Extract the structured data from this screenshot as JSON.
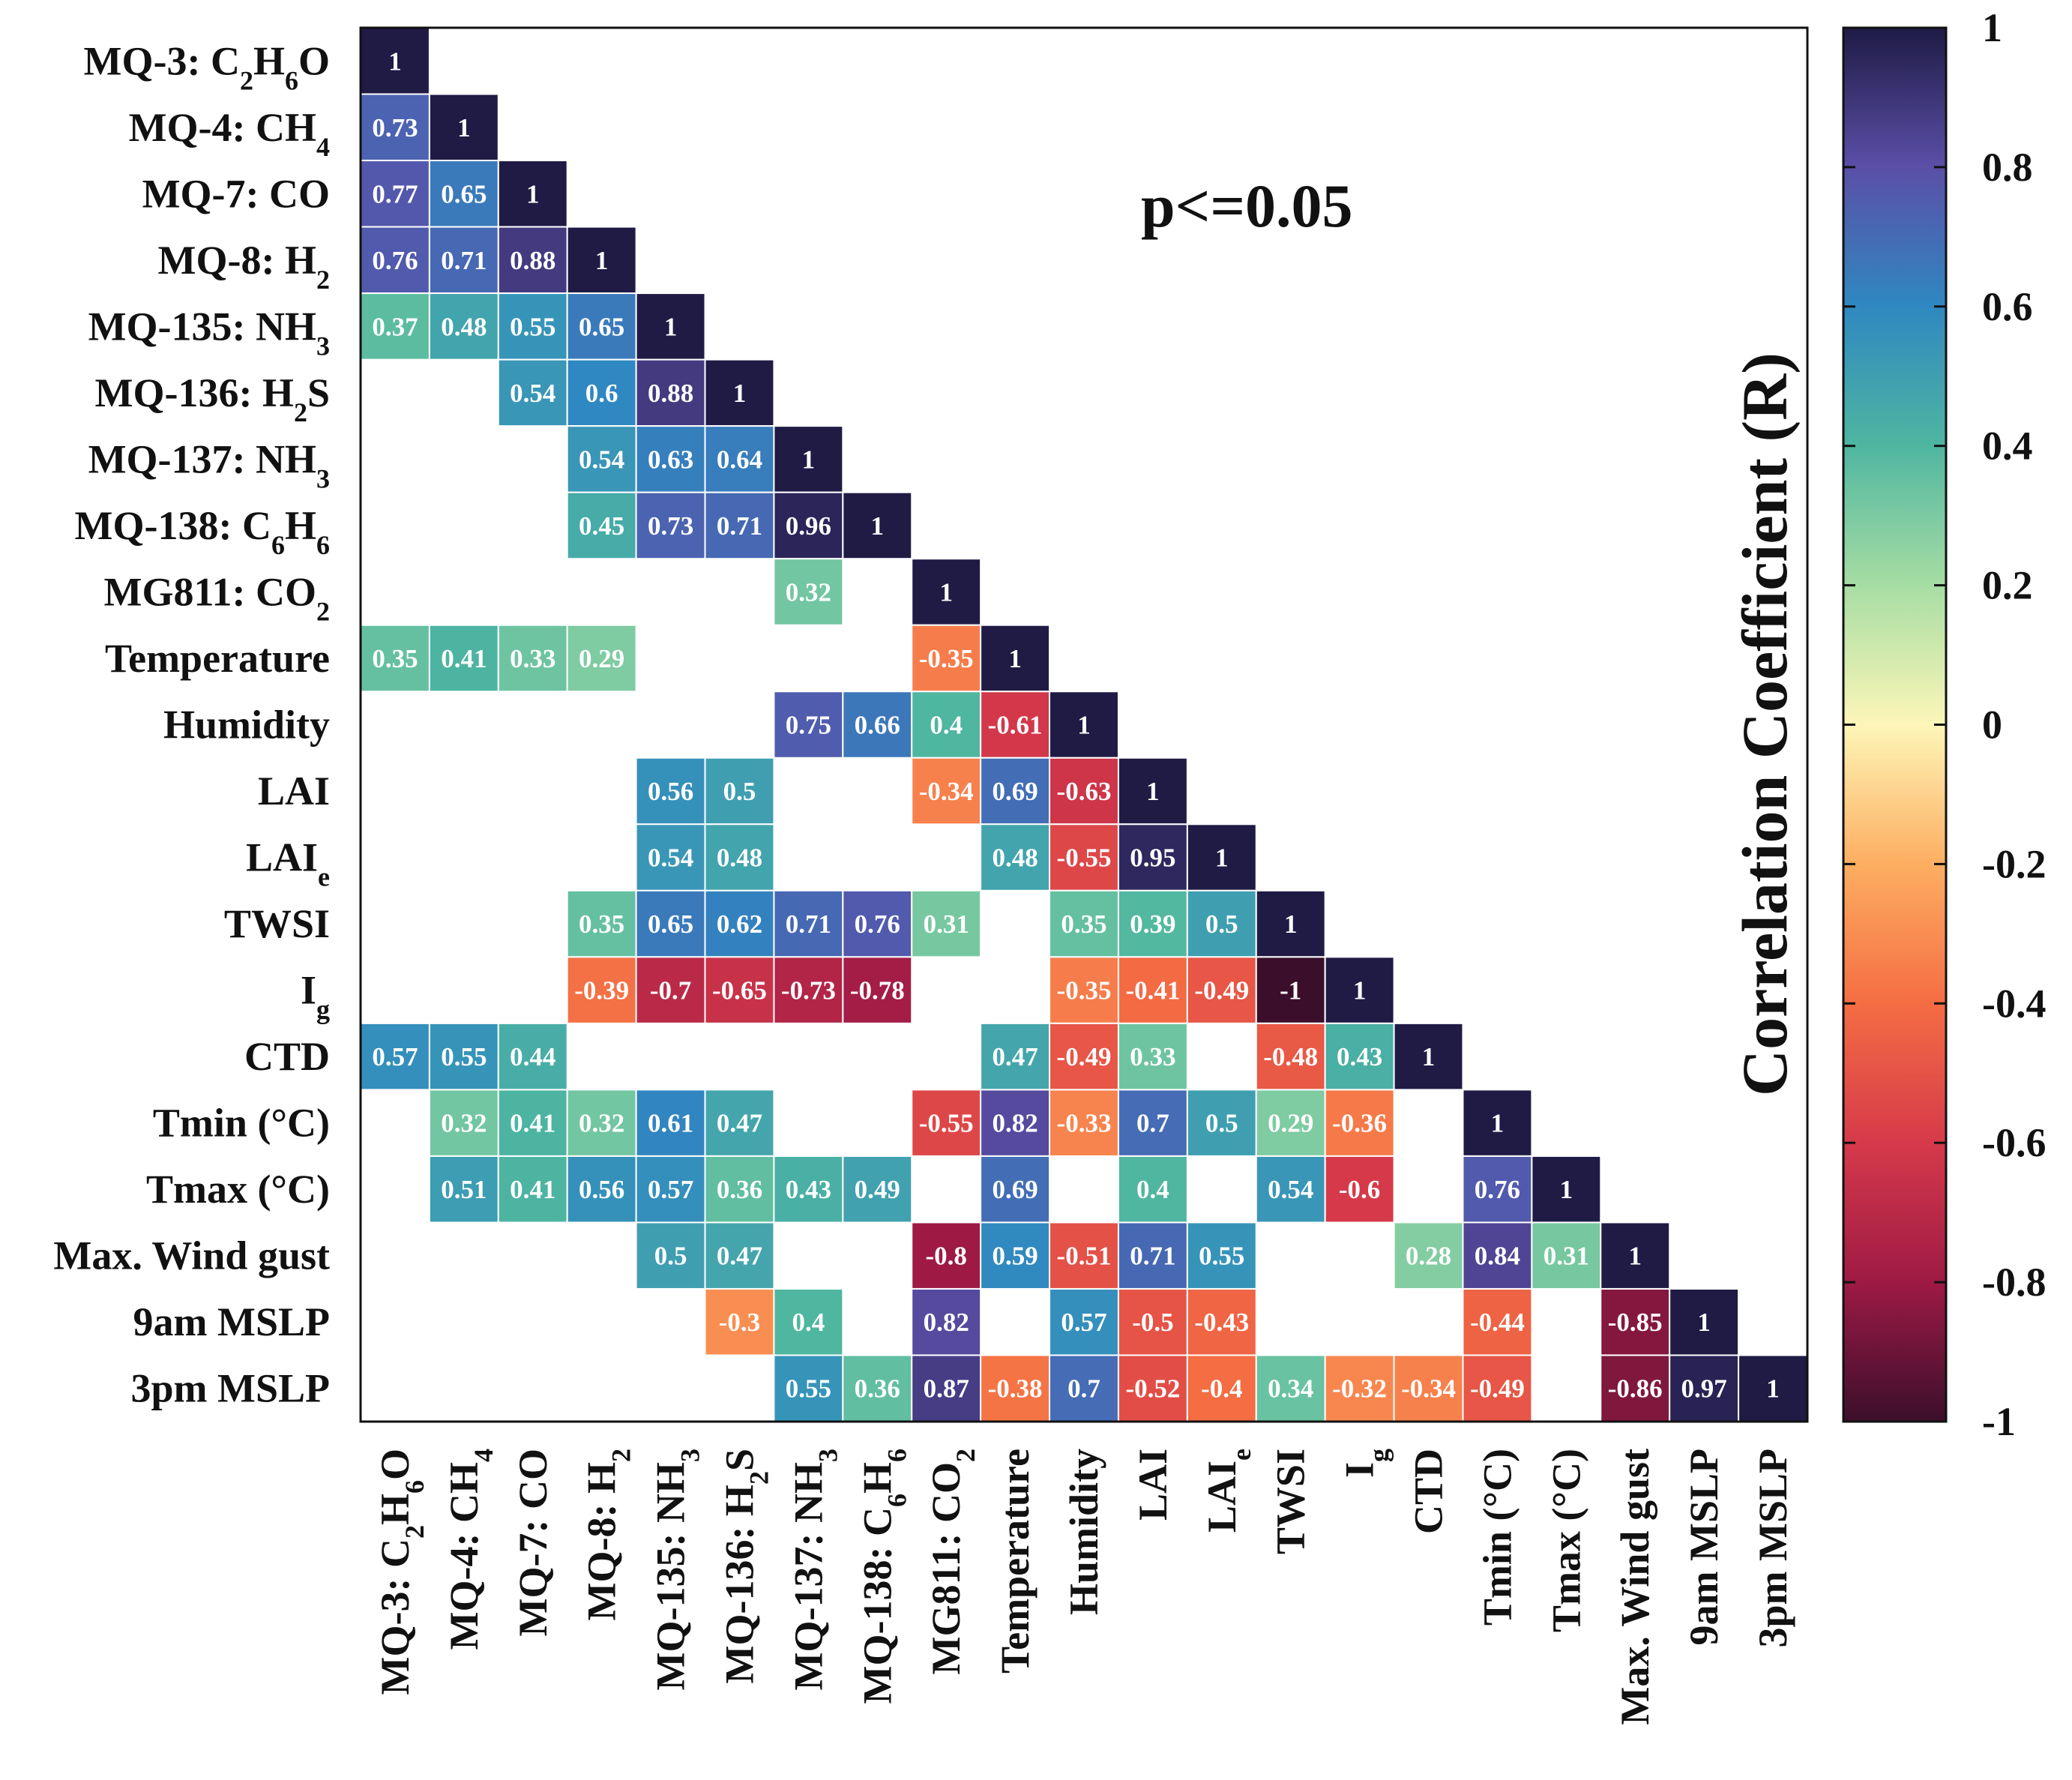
{
  "chart_data": {
    "type": "heatmap",
    "variables": [
      {
        "main": "MQ-3: C",
        "sub1": "2",
        "mid": "H",
        "sub2": "6",
        "tail": "O"
      },
      {
        "main": "MQ-4: CH",
        "sub1": "4",
        "mid": "",
        "sub2": "",
        "tail": ""
      },
      {
        "main": "MQ-7: CO",
        "sub1": "",
        "mid": "",
        "sub2": "",
        "tail": ""
      },
      {
        "main": "MQ-8: H",
        "sub1": "2",
        "mid": "",
        "sub2": "",
        "tail": ""
      },
      {
        "main": "MQ-135: NH",
        "sub1": "3",
        "mid": "",
        "sub2": "",
        "tail": ""
      },
      {
        "main": "MQ-136: H",
        "sub1": "2",
        "mid": "S",
        "sub2": "",
        "tail": ""
      },
      {
        "main": "MQ-137: NH",
        "sub1": "3",
        "mid": "",
        "sub2": "",
        "tail": ""
      },
      {
        "main": "MQ-138: C",
        "sub1": "6",
        "mid": "H",
        "sub2": "6",
        "tail": ""
      },
      {
        "main": "MG811: CO",
        "sub1": "2",
        "mid": "",
        "sub2": "",
        "tail": ""
      },
      {
        "main": "Temperature",
        "sub1": "",
        "mid": "",
        "sub2": "",
        "tail": ""
      },
      {
        "main": "Humidity",
        "sub1": "",
        "mid": "",
        "sub2": "",
        "tail": ""
      },
      {
        "main": "LAI",
        "sub1": "",
        "mid": "",
        "sub2": "",
        "tail": ""
      },
      {
        "main": "LAI",
        "sub1": "e",
        "mid": "",
        "sub2": "",
        "tail": ""
      },
      {
        "main": "TWSI",
        "sub1": "",
        "mid": "",
        "sub2": "",
        "tail": ""
      },
      {
        "main": "I",
        "sub1": "g",
        "mid": "",
        "sub2": "",
        "tail": ""
      },
      {
        "main": "CTD",
        "sub1": "",
        "mid": "",
        "sub2": "",
        "tail": ""
      },
      {
        "main": "Tmin (°C)",
        "sub1": "",
        "mid": "",
        "sub2": "",
        "tail": ""
      },
      {
        "main": "Tmax (°C)",
        "sub1": "",
        "mid": "",
        "sub2": "",
        "tail": ""
      },
      {
        "main": "Max. Wind gust",
        "sub1": "",
        "mid": "",
        "sub2": "",
        "tail": ""
      },
      {
        "main": "9am MSLP",
        "sub1": "",
        "mid": "",
        "sub2": "",
        "tail": ""
      },
      {
        "main": "3pm MSLP",
        "sub1": "",
        "mid": "",
        "sub2": "",
        "tail": ""
      }
    ],
    "matrix": [
      [
        1
      ],
      [
        0.73,
        1
      ],
      [
        0.77,
        0.65,
        1
      ],
      [
        0.76,
        0.71,
        0.88,
        1
      ],
      [
        0.37,
        0.48,
        0.55,
        0.65,
        1
      ],
      [
        null,
        null,
        0.54,
        0.6,
        0.88,
        1
      ],
      [
        null,
        null,
        null,
        0.54,
        0.63,
        0.64,
        1
      ],
      [
        null,
        null,
        null,
        0.45,
        0.73,
        0.71,
        0.96,
        1
      ],
      [
        null,
        null,
        null,
        null,
        null,
        null,
        0.32,
        null,
        1
      ],
      [
        0.35,
        0.41,
        0.33,
        0.29,
        null,
        null,
        null,
        null,
        -0.35,
        1
      ],
      [
        null,
        null,
        null,
        null,
        null,
        null,
        0.75,
        0.66,
        0.4,
        -0.61,
        1
      ],
      [
        null,
        null,
        null,
        null,
        0.56,
        0.5,
        null,
        null,
        -0.34,
        0.69,
        -0.63,
        1
      ],
      [
        null,
        null,
        null,
        null,
        0.54,
        0.48,
        null,
        null,
        null,
        0.48,
        -0.55,
        0.95,
        1
      ],
      [
        null,
        null,
        null,
        0.35,
        0.65,
        0.62,
        0.71,
        0.76,
        0.31,
        null,
        0.35,
        0.39,
        0.5,
        1
      ],
      [
        null,
        null,
        null,
        -0.39,
        -0.7,
        -0.65,
        -0.73,
        -0.78,
        null,
        null,
        -0.35,
        -0.41,
        -0.49,
        -1,
        1
      ],
      [
        0.57,
        0.55,
        0.44,
        null,
        null,
        null,
        null,
        null,
        null,
        0.47,
        -0.49,
        0.33,
        null,
        -0.48,
        0.43,
        1
      ],
      [
        null,
        0.32,
        0.41,
        0.32,
        0.61,
        0.47,
        null,
        null,
        -0.55,
        0.82,
        -0.33,
        0.7,
        0.5,
        0.29,
        -0.36,
        null,
        1
      ],
      [
        null,
        0.51,
        0.41,
        0.56,
        0.57,
        0.36,
        0.43,
        0.49,
        null,
        0.69,
        null,
        0.4,
        null,
        0.54,
        -0.6,
        null,
        0.76,
        1
      ],
      [
        null,
        null,
        null,
        null,
        0.5,
        0.47,
        null,
        null,
        -0.8,
        0.59,
        -0.51,
        0.71,
        0.55,
        null,
        null,
        0.28,
        0.84,
        0.31,
        1
      ],
      [
        null,
        null,
        null,
        null,
        null,
        -0.3,
        0.4,
        null,
        0.82,
        null,
        0.57,
        -0.5,
        -0.43,
        null,
        null,
        null,
        -0.44,
        null,
        -0.85,
        1
      ],
      [
        null,
        null,
        null,
        null,
        null,
        null,
        0.55,
        0.36,
        0.87,
        -0.38,
        0.7,
        -0.52,
        -0.4,
        0.34,
        -0.32,
        -0.34,
        -0.49,
        null,
        -0.86,
        0.97,
        1
      ]
    ],
    "annotation": "p<=0.05",
    "colorbar": {
      "label": "Correlation Coefficient (R)",
      "range": [
        -1,
        1
      ],
      "ticks": [
        "1",
        "0.8",
        "0.6",
        "0.4",
        "0.2",
        "0",
        "-0.2",
        "-0.4",
        "-0.6",
        "-0.8",
        "-1"
      ],
      "tick_values": [
        1,
        0.8,
        0.6,
        0.4,
        0.2,
        0,
        -0.2,
        -0.4,
        -0.6,
        -0.8,
        -1
      ],
      "colormap": [
        {
          "v": -1.0,
          "c": "#3b0f2b"
        },
        {
          "v": -0.8,
          "c": "#9e1a45"
        },
        {
          "v": -0.6,
          "c": "#d63a4a"
        },
        {
          "v": -0.4,
          "c": "#f46d43"
        },
        {
          "v": -0.2,
          "c": "#fdae61"
        },
        {
          "v": 0.0,
          "c": "#fdf6b8"
        },
        {
          "v": 0.2,
          "c": "#a7dda3"
        },
        {
          "v": 0.4,
          "c": "#4fb6a0"
        },
        {
          "v": 0.6,
          "c": "#2f88c1"
        },
        {
          "v": 0.8,
          "c": "#5b4fa8"
        },
        {
          "v": 1.0,
          "c": "#1f1b45"
        }
      ]
    }
  }
}
